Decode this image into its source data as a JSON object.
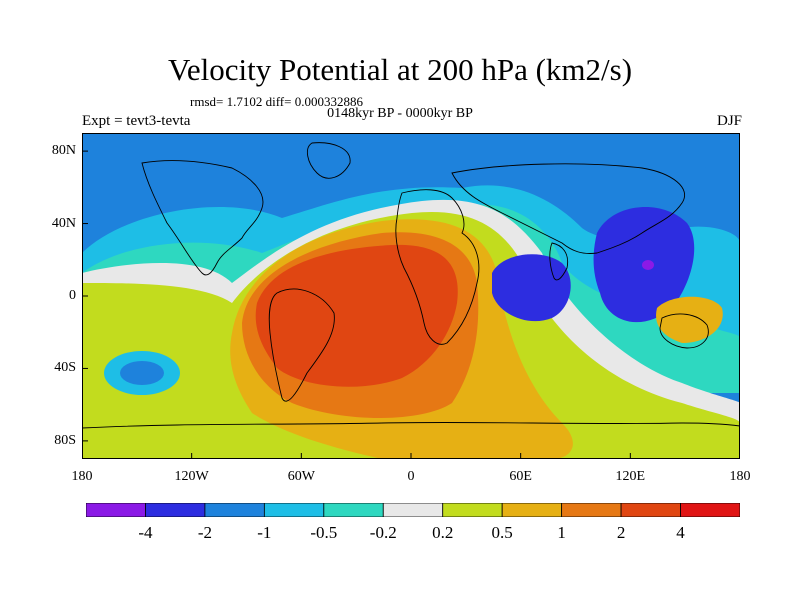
{
  "title": "Velocity Potential at 200 hPa (km2/s)",
  "stats_line": "rmsd= 1.7102 diff= 0.000332886",
  "period": "0148kyr BP - 0000kyr BP",
  "left_label": "Expt = tevt3-tevta",
  "right_label": "DJF",
  "chart_data": {
    "type": "heatmap",
    "subtype": "filled contour map (global, cylindrical equidistant)",
    "title": "Velocity Potential at 200 hPa (km2/s)",
    "units": "km2/s",
    "season": "DJF",
    "experiment": "tevt3-tevta",
    "period": "0148kyr BP - 0000kyr BP",
    "rmsd": 1.7102,
    "diff": 0.000332886,
    "xlim": [
      -180,
      180
    ],
    "ylim": [
      -90,
      90
    ],
    "x_ticks": [
      -180,
      -120,
      -60,
      0,
      60,
      120,
      180
    ],
    "x_tick_labels": [
      "180",
      "120W",
      "60W",
      "0",
      "60E",
      "120E",
      "180"
    ],
    "y_ticks": [
      80,
      40,
      0,
      -40,
      -80
    ],
    "y_tick_labels": [
      "80N",
      "40N",
      "0",
      "40S",
      "80S"
    ],
    "contour_levels": [
      -4,
      -2,
      -1,
      -0.5,
      -0.2,
      0.2,
      0.5,
      1,
      2,
      4
    ],
    "colorbar_labels": [
      "-4",
      "-2",
      "-1",
      "-0.5",
      "-0.2",
      "0.2",
      "0.5",
      "1",
      "2",
      "4"
    ],
    "colors": [
      "#8B1AE6",
      "#2D2DE0",
      "#1E82DC",
      "#1EBEE6",
      "#2ED8C0",
      "#E8E8E8",
      "#C2DC1E",
      "#E6B014",
      "#E67814",
      "#E04612",
      "#E01414"
    ],
    "approximate_features": [
      {
        "feature": "positive maximum",
        "region": "tropical South America / South Atlantic",
        "lon": -40,
        "lat": -15,
        "level": "2 to 4"
      },
      {
        "feature": "negative minimum",
        "region": "western Pacific / East Asia",
        "lon": 130,
        "lat": 25,
        "level": "-4 to -2"
      },
      {
        "feature": "negative minimum",
        "region": "Indian Ocean",
        "lon": 80,
        "lat": 0,
        "level": "-4 to -2"
      },
      {
        "feature": "weak positive",
        "region": "Southern Ocean / Antarctica",
        "lon": 30,
        "lat": -70,
        "level": "0.5 to 1"
      },
      {
        "feature": "negative",
        "region": "North Pacific / Arctic",
        "lon": -120,
        "lat": 60,
        "level": "-1 to -0.5"
      }
    ]
  }
}
